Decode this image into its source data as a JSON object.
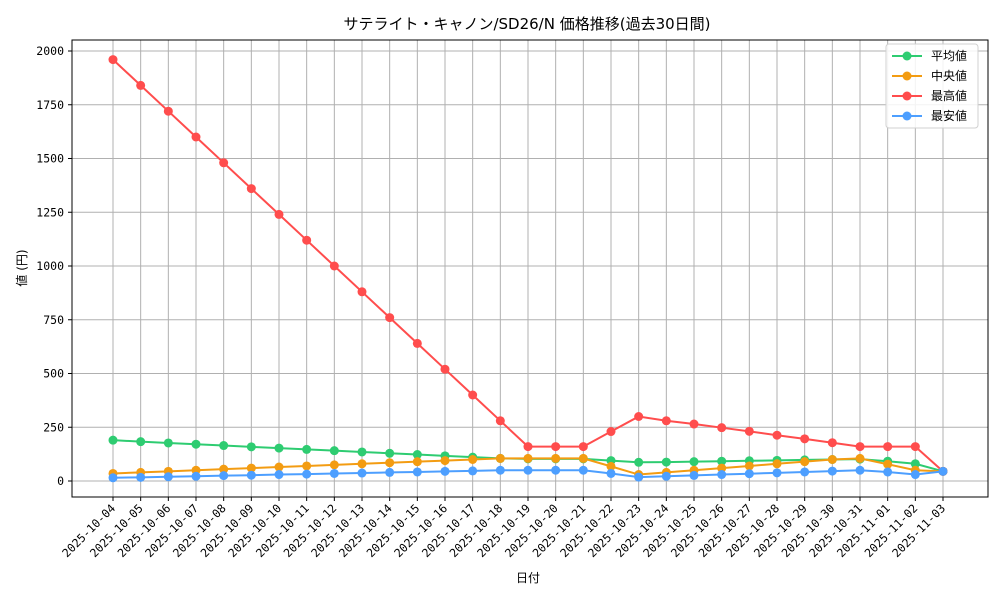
{
  "chart_data": {
    "type": "line",
    "title": "サテライト・キャノン/SD26/N 価格推移(過去30日間)",
    "xlabel": "日付",
    "ylabel": "値 (円)",
    "ylim": [
      -70,
      2060
    ],
    "yticks": [
      0,
      250,
      500,
      750,
      1000,
      1250,
      1500,
      1750,
      2000
    ],
    "grid": true,
    "legend_position": "upper right",
    "categories": [
      "2025-10-04",
      "2025-10-05",
      "2025-10-06",
      "2025-10-07",
      "2025-10-08",
      "2025-10-09",
      "2025-10-10",
      "2025-10-11",
      "2025-10-12",
      "2025-10-13",
      "2025-10-14",
      "2025-10-15",
      "2025-10-16",
      "2025-10-17",
      "2025-10-18",
      "2025-10-19",
      "2025-10-20",
      "2025-10-21",
      "2025-10-22",
      "2025-10-23",
      "2025-10-24",
      "2025-10-25",
      "2025-10-26",
      "2025-10-27",
      "2025-10-28",
      "2025-10-29",
      "2025-10-30",
      "2025-10-31",
      "2025-11-01",
      "2025-11-02",
      "2025-11-03"
    ],
    "series": [
      {
        "name": "平均値",
        "color": "#2ecc71",
        "values": [
          190,
          183,
          177,
          171,
          165,
          159,
          153,
          147,
          141,
          135,
          129,
          123,
          117,
          111,
          105,
          103,
          103,
          103,
          95,
          87,
          88,
          90,
          92,
          94,
          96,
          98,
          100,
          102,
          92,
          80,
          45
        ]
      },
      {
        "name": "中央値",
        "color": "#f39c12",
        "values": [
          35,
          40,
          45,
          50,
          55,
          60,
          65,
          70,
          75,
          80,
          85,
          90,
          95,
          100,
          105,
          105,
          105,
          105,
          68,
          30,
          40,
          50,
          60,
          70,
          80,
          90,
          100,
          105,
          78,
          50,
          45
        ]
      },
      {
        "name": "最高値",
        "color": "#ff4d4d",
        "values": [
          1960,
          1840,
          1720,
          1600,
          1480,
          1360,
          1240,
          1120,
          1000,
          880,
          760,
          640,
          520,
          400,
          280,
          160,
          160,
          160,
          230,
          300,
          280,
          265,
          248,
          231,
          213,
          196,
          178,
          160,
          160,
          160,
          45
        ]
      },
      {
        "name": "最安値",
        "color": "#4d9fff",
        "values": [
          15,
          17,
          20,
          22,
          25,
          27,
          30,
          32,
          35,
          37,
          40,
          42,
          45,
          47,
          50,
          50,
          50,
          50,
          35,
          18,
          22,
          26,
          30,
          34,
          38,
          42,
          46,
          50,
          42,
          30,
          45
        ]
      }
    ]
  }
}
